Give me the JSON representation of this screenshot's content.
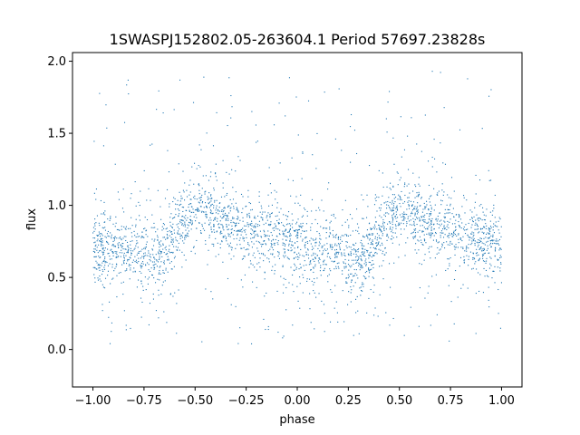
{
  "chart_data": {
    "type": "scatter",
    "title": "1SWASPJ152802.05-263604.1 Period 57697.23828s",
    "xlabel": "phase",
    "ylabel": "flux",
    "xlim": [
      -1.1,
      1.1
    ],
    "ylim": [
      -0.26,
      2.06
    ],
    "x_ticks": [
      -1.0,
      -0.75,
      -0.5,
      -0.25,
      0.0,
      0.25,
      0.5,
      0.75,
      1.0
    ],
    "x_tick_labels": [
      "−1.00",
      "−0.75",
      "−0.50",
      "−0.25",
      "0.00",
      "0.25",
      "0.50",
      "0.75",
      "1.00"
    ],
    "y_ticks": [
      0.0,
      0.5,
      1.0,
      1.5,
      2.0
    ],
    "y_tick_labels": [
      "0.0",
      "0.5",
      "1.0",
      "1.5",
      "2.0"
    ],
    "grid": false,
    "legend": "none",
    "marker_color": "#1f77b4",
    "series": [
      {
        "phase": [
          -1.0,
          -0.9,
          -0.8,
          -0.7,
          -0.65,
          -0.6,
          -0.55,
          -0.5,
          -0.45,
          -0.4,
          -0.3,
          -0.2,
          -0.1,
          0.0,
          0.1,
          0.2,
          0.3,
          0.35,
          0.4,
          0.45,
          0.5,
          0.55,
          0.6,
          0.7,
          0.8,
          0.9,
          1.0
        ],
        "flux": [
          0.72,
          0.7,
          0.68,
          0.63,
          0.66,
          0.82,
          0.9,
          0.95,
          0.96,
          0.92,
          0.85,
          0.8,
          0.76,
          0.72,
          0.7,
          0.68,
          0.63,
          0.66,
          0.82,
          0.9,
          0.95,
          0.96,
          0.92,
          0.85,
          0.8,
          0.76,
          0.72
        ]
      }
    ]
  }
}
